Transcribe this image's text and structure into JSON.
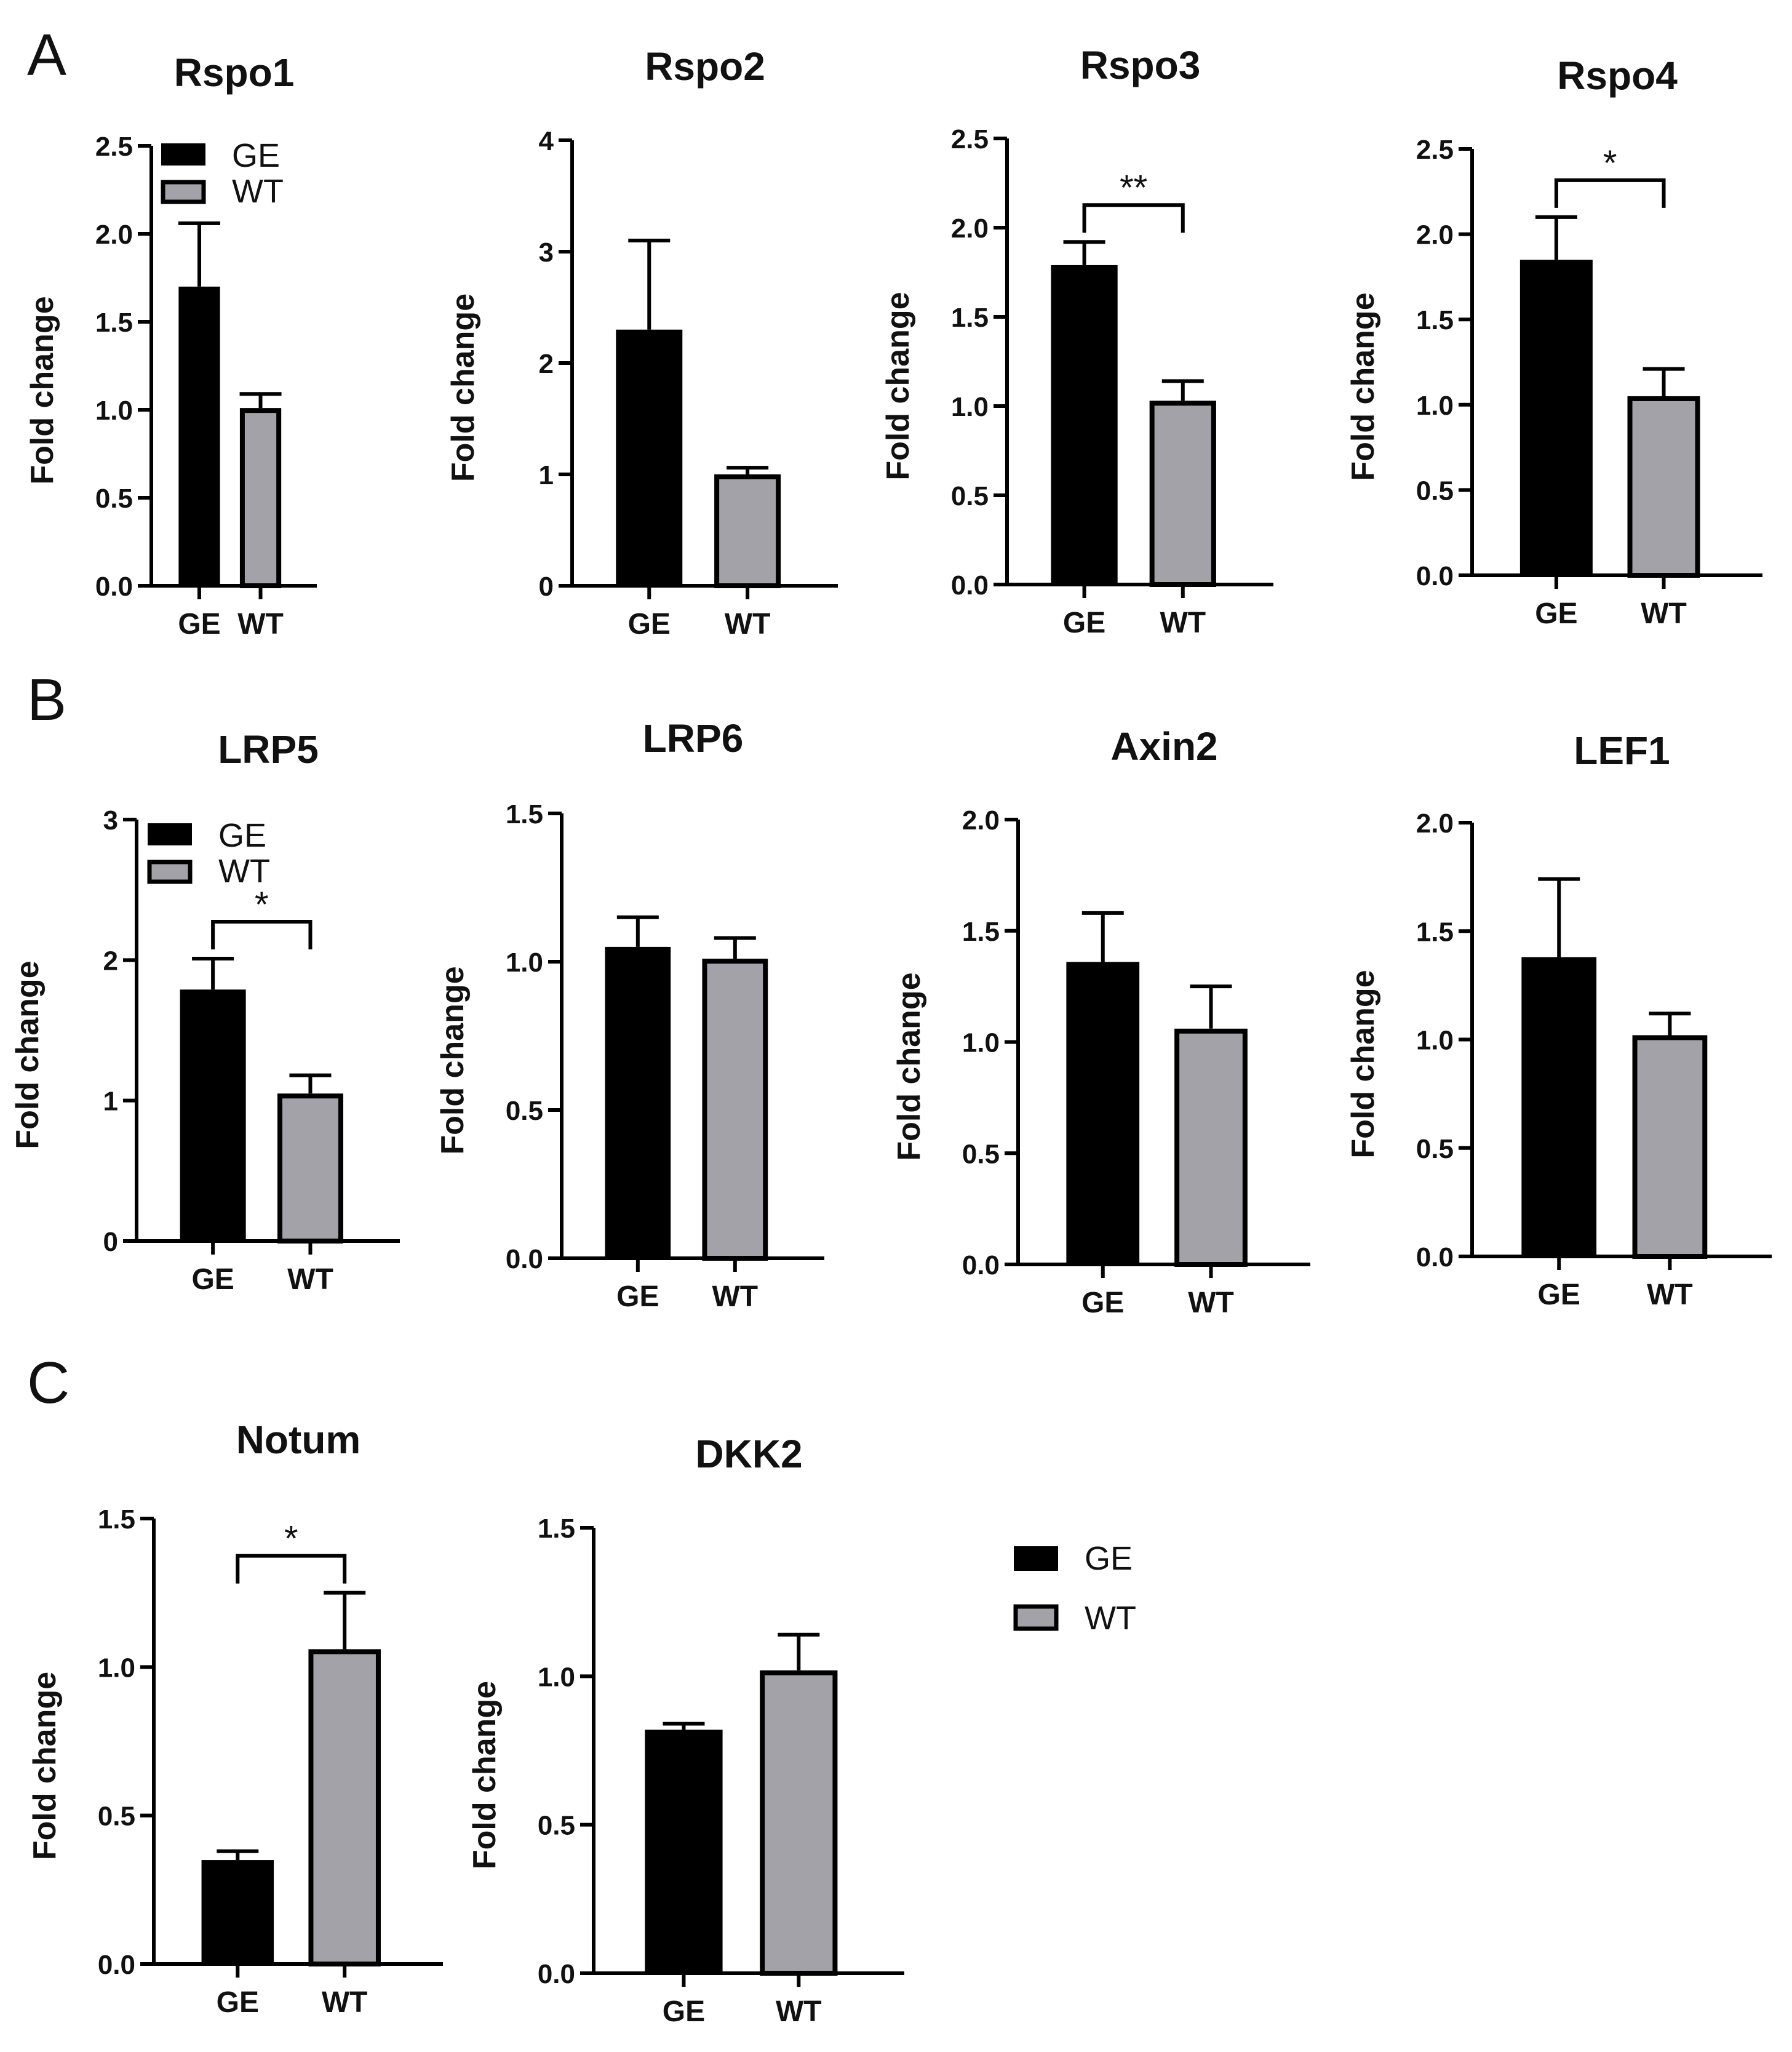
{
  "panels": [
    "A",
    "B",
    "C"
  ],
  "colors": {
    "GE": "#000000",
    "WT": "#a3a2a8",
    "axis": "#000000"
  },
  "legend": {
    "entries": [
      "GE",
      "WT"
    ]
  },
  "chart_data": [
    {
      "type": "bar",
      "panel": "A",
      "title": "Rspo1",
      "ylabel": "Fold change",
      "categories": [
        "GE",
        "WT"
      ],
      "values": [
        1.7,
        1.01
      ],
      "errors": [
        0.36,
        0.08
      ],
      "ylim": [
        0,
        2.5
      ],
      "yticks": [
        "0.0",
        "0.5",
        "1.0",
        "1.5",
        "2.0",
        "2.5"
      ],
      "legend": true
    },
    {
      "type": "bar",
      "panel": "A",
      "title": "Rspo2",
      "ylabel": "Fold change",
      "categories": [
        "GE",
        "WT"
      ],
      "values": [
        2.3,
        1.0
      ],
      "errors": [
        0.8,
        0.06
      ],
      "ylim": [
        0,
        4
      ],
      "yticks": [
        "0",
        "1",
        "2",
        "3",
        "4"
      ]
    },
    {
      "type": "bar",
      "panel": "A",
      "title": "Rspo3",
      "ylabel": "Fold change",
      "categories": [
        "GE",
        "WT"
      ],
      "values": [
        1.79,
        1.03
      ],
      "errors": [
        0.13,
        0.11
      ],
      "ylim": [
        0,
        2.5
      ],
      "yticks": [
        "0.0",
        "0.5",
        "1.0",
        "1.5",
        "2.0",
        "2.5"
      ],
      "significance": "**"
    },
    {
      "type": "bar",
      "panel": "A",
      "title": "Rspo4",
      "ylabel": "Fold change",
      "categories": [
        "GE",
        "WT"
      ],
      "values": [
        1.85,
        1.05
      ],
      "errors": [
        0.25,
        0.16
      ],
      "ylim": [
        0,
        2.5
      ],
      "yticks": [
        "0.0",
        "0.5",
        "1.0",
        "1.5",
        "2.0",
        "2.5"
      ],
      "significance": "*"
    },
    {
      "type": "bar",
      "panel": "B",
      "title": "LRP5",
      "ylabel": "Fold change",
      "categories": [
        "GE",
        "WT"
      ],
      "values": [
        1.79,
        1.05
      ],
      "errors": [
        0.22,
        0.13
      ],
      "ylim": [
        0,
        3
      ],
      "yticks": [
        "0",
        "1",
        "2",
        "3"
      ],
      "significance": "*",
      "legend": true
    },
    {
      "type": "bar",
      "panel": "B",
      "title": "LRP6",
      "ylabel": "Fold change",
      "categories": [
        "GE",
        "WT"
      ],
      "values": [
        1.05,
        1.01
      ],
      "errors": [
        0.1,
        0.07
      ],
      "ylim": [
        0,
        1.5
      ],
      "yticks": [
        "0.0",
        "0.5",
        "1.0",
        "1.5"
      ]
    },
    {
      "type": "bar",
      "panel": "B",
      "title": "Axin2",
      "ylabel": "Fold change",
      "categories": [
        "GE",
        "WT"
      ],
      "values": [
        1.36,
        1.06
      ],
      "errors": [
        0.22,
        0.19
      ],
      "ylim": [
        0,
        2.0
      ],
      "yticks": [
        "0.0",
        "0.5",
        "1.0",
        "1.5",
        "2.0"
      ]
    },
    {
      "type": "bar",
      "panel": "B",
      "title": "LEF1",
      "ylabel": "Fold change",
      "categories": [
        "GE",
        "WT"
      ],
      "values": [
        1.38,
        1.02
      ],
      "errors": [
        0.36,
        0.1
      ],
      "ylim": [
        0,
        2.0
      ],
      "yticks": [
        "0.0",
        "0.5",
        "1.0",
        "1.5",
        "2.0"
      ]
    },
    {
      "type": "bar",
      "panel": "C",
      "title": "Notum",
      "ylabel": "Fold change",
      "categories": [
        "GE",
        "WT"
      ],
      "values": [
        0.35,
        1.06
      ],
      "errors": [
        0.03,
        0.19
      ],
      "ylim": [
        0,
        1.5
      ],
      "yticks": [
        "0.0",
        "0.5",
        "1.0",
        "1.5"
      ],
      "significance": "*"
    },
    {
      "type": "bar",
      "panel": "C",
      "title": "DKK2",
      "ylabel": "Fold change",
      "categories": [
        "GE",
        "WT"
      ],
      "values": [
        0.82,
        1.02
      ],
      "errors": [
        0.02,
        0.12
      ],
      "ylim": [
        0,
        1.5
      ],
      "yticks": [
        "0.0",
        "0.5",
        "1.0",
        "1.5"
      ]
    }
  ]
}
